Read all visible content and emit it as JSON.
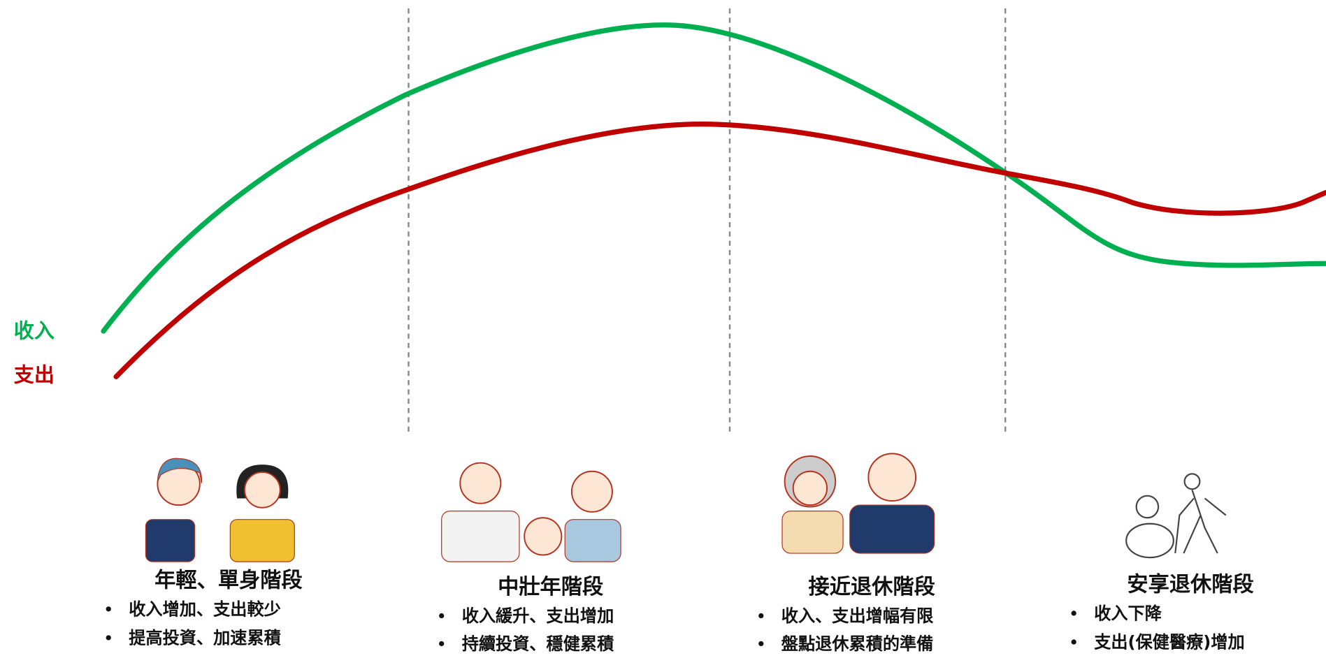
{
  "legend": {
    "income": "收入",
    "expense": "支出"
  },
  "stages": [
    {
      "title": "年輕、單身階段",
      "bullets": [
        "收入增加、支出較少",
        "提高投資、加速累積"
      ]
    },
    {
      "title": "中壯年階段",
      "bullets": [
        "收入緩升、支出增加",
        "持續投資、穩健累積"
      ]
    },
    {
      "title": "接近退休階段",
      "bullets": [
        "收入、支出增幅有限",
        "盤點退休累積的準備"
      ]
    },
    {
      "title": "安享退休階段",
      "bullets": [
        "收入下降",
        "支出(保健醫療)增加"
      ]
    }
  ]
}
